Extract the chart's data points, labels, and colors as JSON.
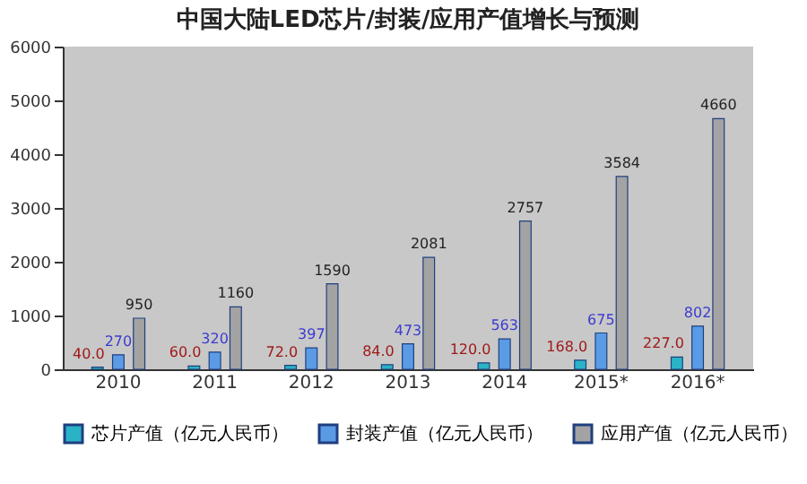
{
  "chart_data": {
    "type": "bar",
    "title": "中国大陆LED芯片/封装/应用产值增长与预测",
    "categories": [
      "2010",
      "2011",
      "2012",
      "2013",
      "2014",
      "2015*",
      "2016*"
    ],
    "series": [
      {
        "name": "芯片产值（亿元人民币）",
        "color": "#2ab3c6",
        "values": [
          40,
          60,
          72,
          84,
          120,
          168,
          227
        ],
        "value_labels": [
          "40.0",
          "60.0",
          "72.0",
          "84.0",
          "120.0",
          "168.0",
          "227.0"
        ]
      },
      {
        "name": "封装产值（亿元人民币）",
        "color": "#5b9be6",
        "values": [
          270,
          320,
          397,
          473,
          563,
          675,
          802
        ],
        "value_labels": [
          "270",
          "320",
          "397",
          "473",
          "563",
          "675",
          "802"
        ]
      },
      {
        "name": "应用产值（亿元人民币）",
        "color": "#a3a3a3",
        "values": [
          950,
          1160,
          1590,
          2081,
          2757,
          3584,
          4660
        ],
        "value_labels": [
          "950",
          "1160",
          "1590",
          "2081",
          "2757",
          "3584",
          "4660"
        ]
      }
    ],
    "ylim": [
      0,
      6000
    ],
    "yticks": [
      0,
      1000,
      2000,
      3000,
      4000,
      5000,
      6000
    ],
    "grid": false,
    "legend": "bottom"
  }
}
